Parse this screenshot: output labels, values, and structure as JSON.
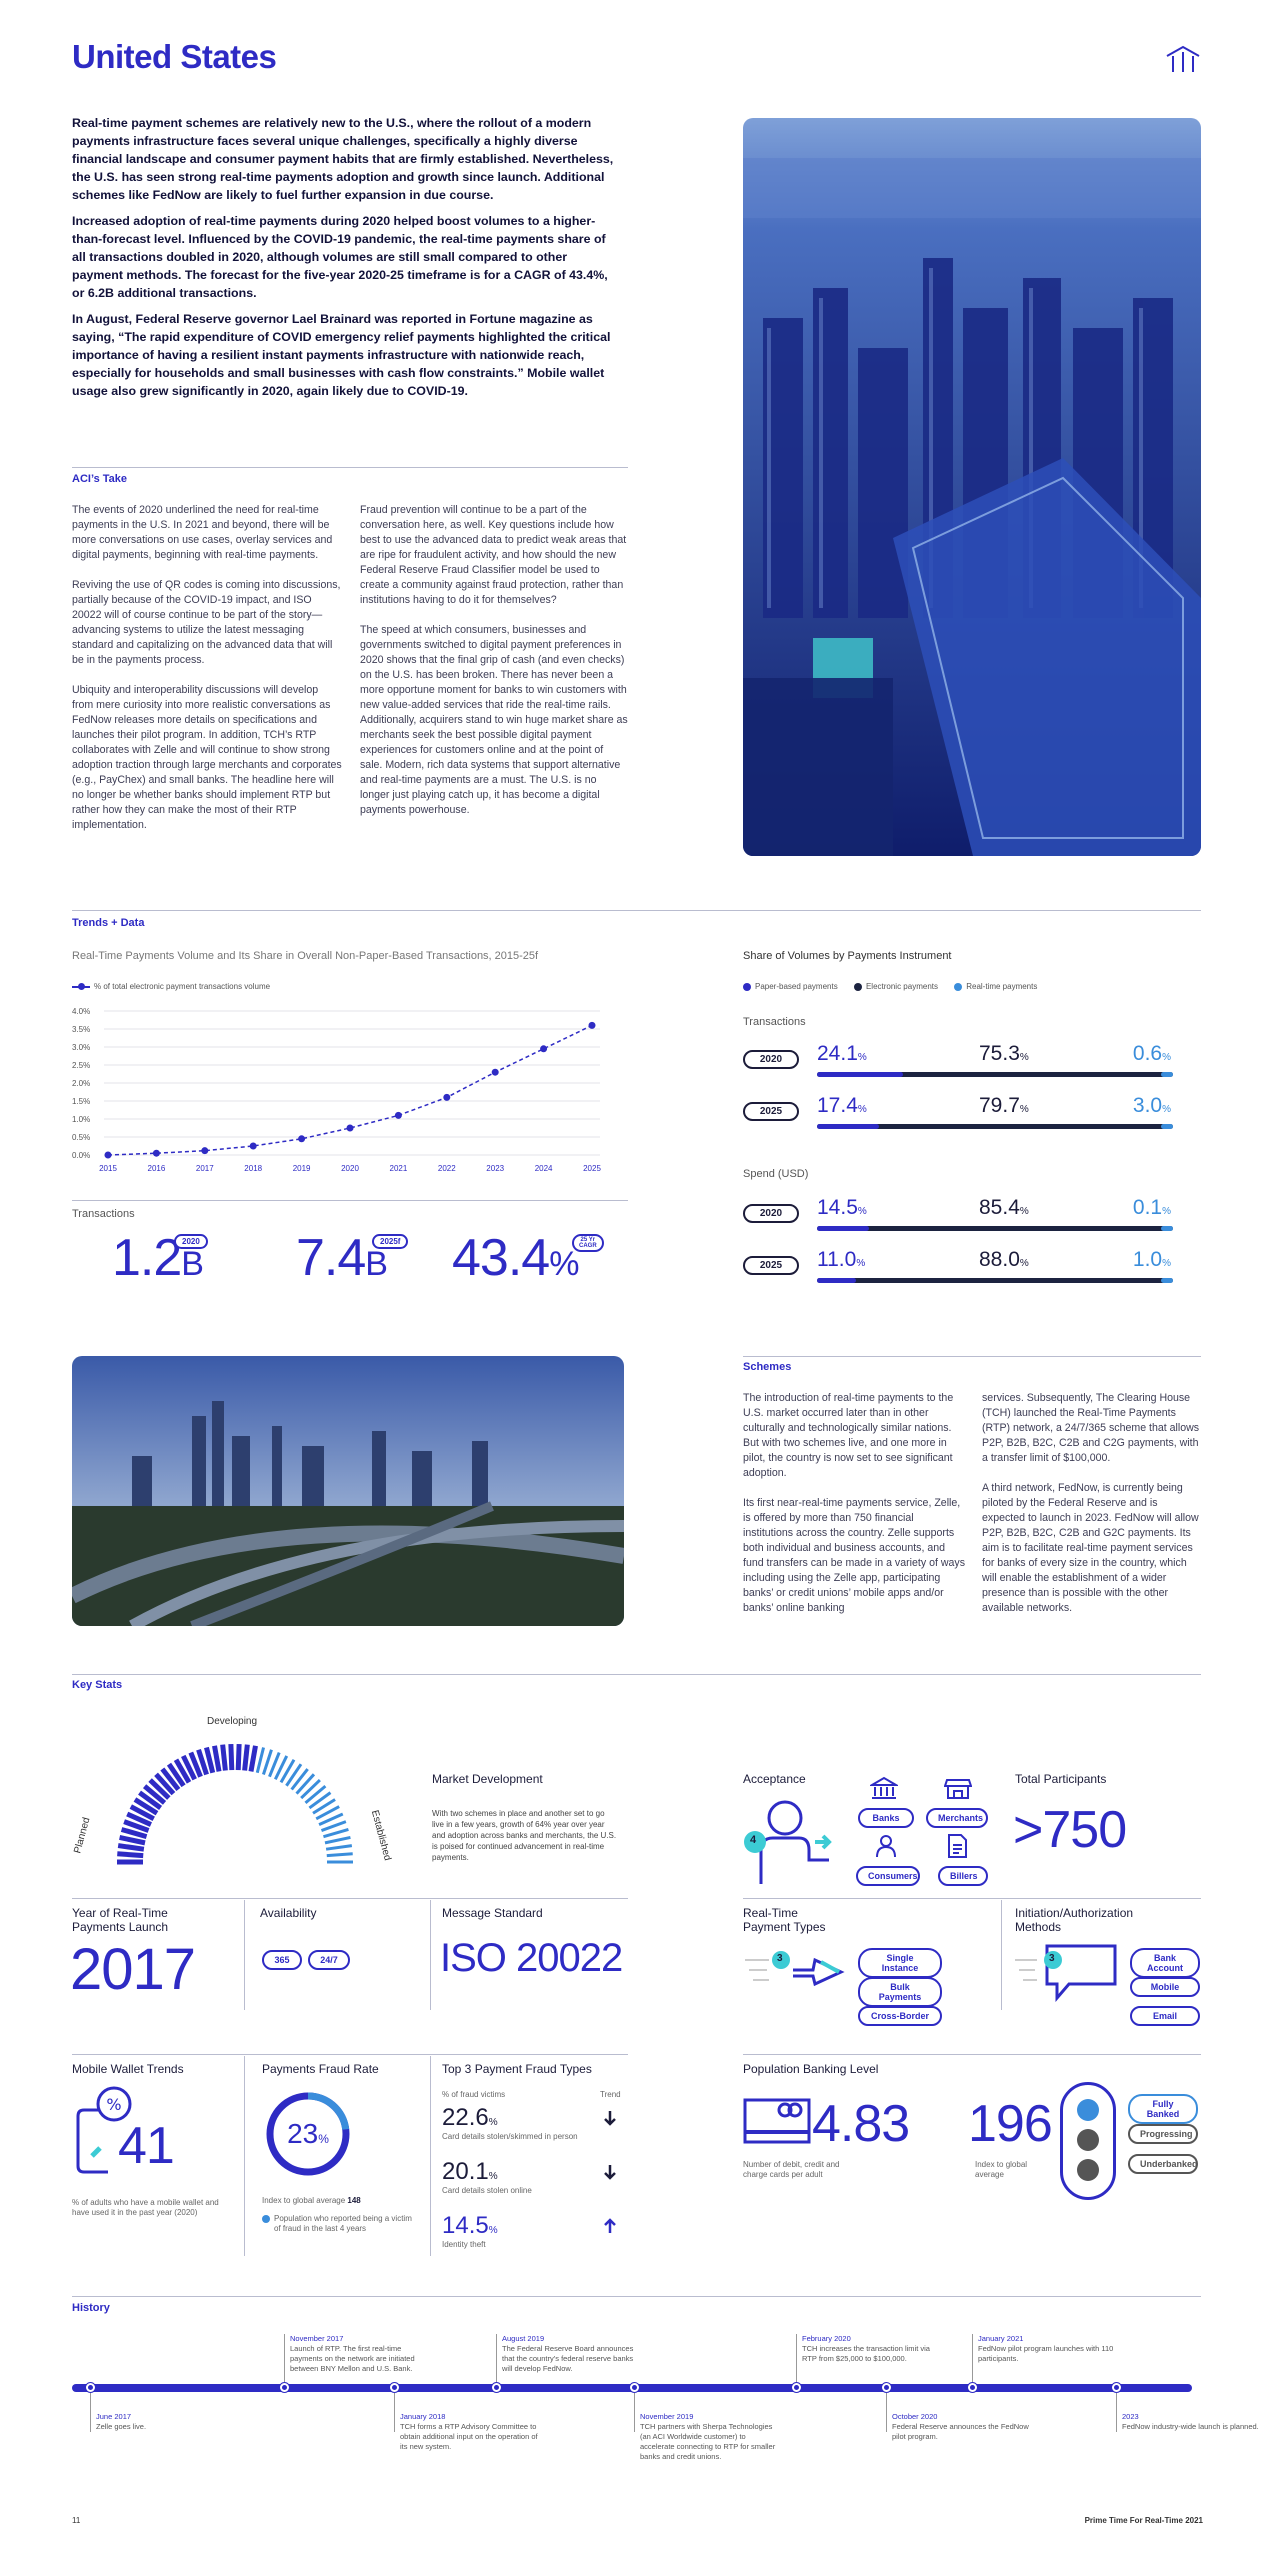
{
  "page_title": "United States",
  "intro": [
    "Real-time payment schemes are relatively new to the U.S., where the rollout of a modern payments infrastructure faces several unique challenges, specifically a highly diverse financial landscape and consumer payment habits that are firmly established. Nevertheless, the U.S. has seen strong real-time payments adoption and growth since launch. Additional schemes like FedNow are likely to fuel further expansion in due course.",
    "Increased adoption of real-time payments during 2020 helped boost volumes to a higher-than-forecast level. Influenced by the COVID-19 pandemic, the real-time payments share of all transactions doubled in 2020, although volumes are still small compared to other payment methods. The forecast for the five-year 2020-25 timeframe is for a CAGR of 43.4%, or 6.2B additional transactions.",
    "In August, Federal Reserve governor Lael Brainard was reported in Fortune magazine as saying, “The rapid expenditure of COVID emergency relief payments highlighted the critical importance of having a resilient instant payments infrastructure with nationwide reach, especially for households and small businesses with cash flow constraints.” Mobile wallet usage also grew significantly in 2020, again likely due to COVID-19."
  ],
  "acis_take": {
    "label": "ACI’s Take",
    "col1": "The events of 2020 underlined the need for real-time payments in the U.S. In 2021 and beyond, there will be more conversations on use cases, overlay services and digital payments, beginning with real-time payments.\n\nReviving the use of QR codes is coming into discussions, partially because of the COVID-19 impact, and ISO 20022 will of course continue to be part of the story—advancing systems to utilize the latest messaging standard and capitalizing on the advanced data that will be in the payments process.\n\nUbiquity and interoperability discussions will develop from mere curiosity into more realistic conversations as FedNow releases more details on specifications and launches their pilot program. In addition, TCH’s RTP collaborates with Zelle and will continue to show strong adoption traction through large merchants and corporates (e.g., PayChex) and small banks. The headline here will no longer be whether banks should implement RTP but rather how they can make the most of their RTP implementation.",
    "col2": "Fraud prevention will continue to be a part of the conversation here, as well. Key questions include how best to use the advanced data to predict weak areas that are ripe for fraudulent activity, and how should the new Federal Reserve Fraud Classifier model be used to create a community against fraud protection, rather than institutions having to do it for themselves?\n\nThe speed at which consumers, businesses and governments switched to digital payment preferences in 2020 shows that the final grip of cash (and even checks) on the U.S. has been broken. There has never been a more opportune moment for banks to win customers with new value-added services that ride the real-time rails. Additionally, acquirers stand to win huge market share as merchants seek the best possible digital payment experiences for customers online and at the point of sale. Modern, rich data systems that support alternative and real-time payments are a must. The U.S. is no longer just playing catch up, it has become a digital payments powerhouse."
  },
  "trends_label": "Trends + Data",
  "chart_data": {
    "type": "line",
    "title": "Real-Time Payments Volume and Its Share in Overall Non-Paper-Based Transactions, 2015-25f",
    "legend": "% of total electronic payment transactions volume",
    "x": [
      "2015",
      "2016",
      "2017",
      "2018",
      "2019",
      "2020",
      "2021",
      "2022",
      "2023",
      "2024",
      "2025"
    ],
    "values": [
      0.0,
      0.05,
      0.12,
      0.25,
      0.45,
      0.75,
      1.1,
      1.6,
      2.3,
      2.95,
      3.6
    ],
    "ylim": [
      0,
      4.0
    ],
    "yticks": [
      "4.0%",
      "3.5%",
      "3.0%",
      "2.5%",
      "2.0%",
      "1.5%",
      "1.0%",
      "0.5%",
      "0.0%"
    ]
  },
  "transactions": {
    "label": "Transactions",
    "items": [
      {
        "value": "1.2",
        "unit": "B",
        "tag": "2020"
      },
      {
        "value": "7.4",
        "unit": "B",
        "tag": "2025f"
      },
      {
        "value": "43.4",
        "unit": "%",
        "tag": "25 Yr CAGR"
      }
    ]
  },
  "share": {
    "title": "Share of Volumes by Payments Instrument",
    "legend": [
      "Paper-based payments",
      "Electronic payments",
      "Real-time payments"
    ],
    "colors": {
      "paper": "#2e2bc4",
      "electronic": "#1c2340",
      "realtime": "#3a8ddb"
    },
    "transactions_label": "Transactions",
    "spend_label": "Spend (USD)",
    "rows": [
      {
        "group": "t",
        "year": "2020",
        "a": "24.1",
        "b": "75.3",
        "c": "0.6",
        "fill": 0.241
      },
      {
        "group": "t",
        "year": "2025",
        "a": "17.4",
        "b": "79.7",
        "c": "3.0",
        "fill": 0.174
      },
      {
        "group": "s",
        "year": "2020",
        "a": "14.5",
        "b": "85.4",
        "c": "0.1",
        "fill": 0.145
      },
      {
        "group": "s",
        "year": "2025",
        "a": "11.0",
        "b": "88.0",
        "c": "1.0",
        "fill": 0.11
      }
    ]
  },
  "schemes": {
    "label": "Schemes",
    "col1": "The introduction of real-time payments to the U.S. market occurred later than in other culturally and technologically similar nations. But with two schemes live, and one more in pilot, the country is now set to see significant adoption.\n\nIts first near-real-time payments service, Zelle, is offered by more than 750 financial institutions across the country. Zelle supports both individual and business accounts, and fund transfers can be made in a variety of ways including using the Zelle app, participating banks’ or credit unions’ mobile apps and/or banks’ online banking",
    "col2": "services. Subsequently, The Clearing House (TCH) launched the Real-Time Payments (RTP) network, a 24/7/365 scheme that allows P2P, B2B, B2C, C2B and C2G payments, with a transfer limit of $100,000.\n\nA third network, FedNow, is currently being piloted by the Federal Reserve and is expected to launch in 2023. FedNow will allow P2P, B2B, B2C, C2B and G2C payments. Its aim is to facilitate real-time payment services for banks of every size in the country, which will enable the establishment of a wider presence than is possible with the other available networks."
  },
  "key_stats": {
    "label": "Key Stats",
    "gauge": {
      "left": "Planned",
      "top": "Developing",
      "right": "Established"
    },
    "market_dev": {
      "title": "Market Development",
      "text": "With two schemes in place and another set to go live in a few years, growth of 64% year over year and adoption across banks and merchants, the U.S. is poised for continued advancement in real-time payments."
    },
    "acceptance": {
      "title": "Acceptance",
      "count": "4",
      "items": [
        "Banks",
        "Merchants",
        "Consumers",
        "Billers"
      ]
    },
    "participants": {
      "title": "Total Participants",
      "value": ">750"
    },
    "launch": {
      "title": "Year of Real-Time Payments Launch",
      "value": "2017"
    },
    "availability": {
      "title": "Availability",
      "a": "365",
      "b": "24/7"
    },
    "message": {
      "title": "Message Standard",
      "value": "ISO 20022"
    },
    "payment_types": {
      "title": "Real-Time Payment Types",
      "count": "3",
      "items": [
        "Single Instance",
        "Bulk Payments",
        "Cross-Border"
      ]
    },
    "initiation": {
      "title": "Initiation/Authorization Methods",
      "count": "3",
      "items": [
        "Bank Account",
        "Mobile",
        "Email"
      ]
    },
    "mobile_wallet": {
      "title": "Mobile Wallet Trends",
      "value": "41",
      "caption": "% of adults who have a mobile wallet and have used it in the past year (2020)"
    },
    "fraud_rate": {
      "title": "Payments Fraud Rate",
      "value": "23",
      "unit": "%",
      "index_label": "Index to global average",
      "index": "148",
      "caption": "Population who reported being a victim of fraud in the last 4 years"
    },
    "fraud_types": {
      "title": "Top 3 Payment Fraud Types",
      "col_a": "% of fraud victims",
      "col_b": "Trend",
      "items": [
        {
          "value": "22.6",
          "label": "Card details stolen/skimmed in person",
          "trend": "down"
        },
        {
          "value": "20.1",
          "label": "Card details stolen online",
          "trend": "down"
        },
        {
          "value": "14.5",
          "label": "Identity theft",
          "trend": "up"
        }
      ]
    },
    "banking": {
      "title": "Population Banking Level",
      "cards_value": "4.83",
      "cards_caption": "Number of debit, credit and charge cards per adult",
      "index_value": "196",
      "index_caption": "Index to global average",
      "levels": [
        "Fully Banked",
        "Progressing",
        "Underbanked"
      ]
    }
  },
  "history": {
    "label": "History",
    "top": [
      {
        "date": "November 2017",
        "text": "Launch of RTP. The first real-time payments on the network are initiated between BNY Mellon and U.S. Bank."
      },
      {
        "date": "August 2019",
        "text": "The Federal Reserve Board announces that the country’s federal reserve banks will develop FedNow."
      },
      {
        "date": "February 2020",
        "text": "TCH increases the transaction limit via RTP from $25,000 to $100,000."
      },
      {
        "date": "January 2021",
        "text": "FedNow pilot program launches with 110 participants."
      }
    ],
    "bottom": [
      {
        "date": "June 2017",
        "text": "Zelle goes live."
      },
      {
        "date": "January 2018",
        "text": "TCH forms a RTP Advisory Committee to obtain additional input on the operation of its new system."
      },
      {
        "date": "November 2019",
        "text": "TCH partners with Sherpa Technologies (an ACI Worldwide customer) to accelerate connecting to RTP for smaller banks and credit unions."
      },
      {
        "date": "October 2020",
        "text": "Federal Reserve announces the FedNow pilot program."
      },
      {
        "date": "2023",
        "text": "FedNow industry-wide launch is planned."
      }
    ]
  },
  "footer": {
    "page": "11",
    "publication": "Prime Time For Real-Time 2021"
  }
}
